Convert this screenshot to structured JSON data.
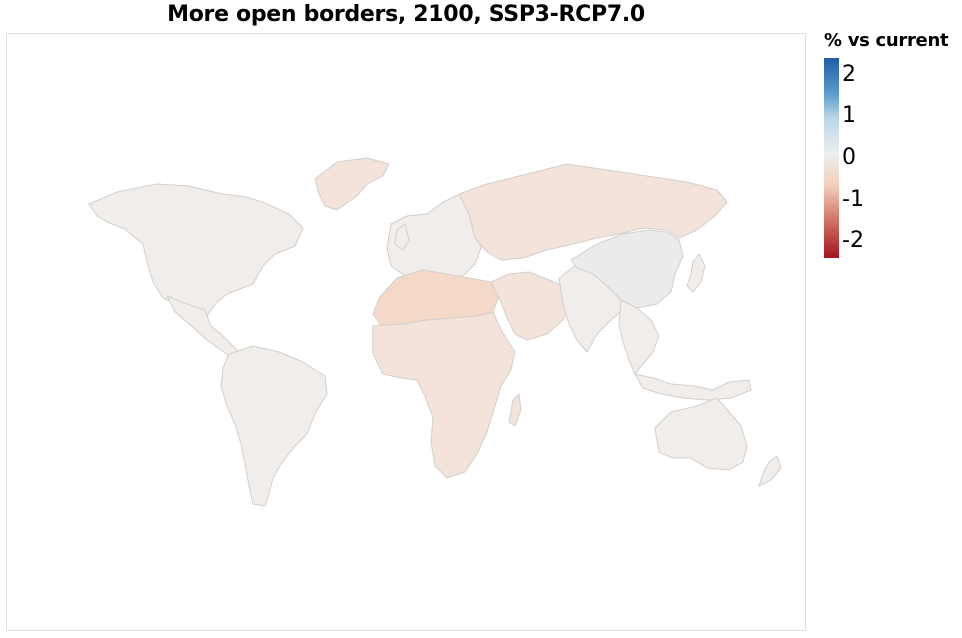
{
  "title": "More open borders, 2100, SSP3-RCP7.0",
  "legend": {
    "title": "% vs current",
    "ticks": [
      {
        "label": "2",
        "value": 2
      },
      {
        "label": "1",
        "value": 1
      },
      {
        "label": "0",
        "value": 0
      },
      {
        "label": "-1",
        "value": -1
      },
      {
        "label": "-2",
        "value": -2
      }
    ]
  },
  "colors": {
    "neutral_land": "#f0edeb",
    "slight_negative": "#f3e3da",
    "negative": "#f5d9c8",
    "china": "#ebebeb",
    "border": "#d2cfcc",
    "scale_max": "#1e5fa6",
    "scale_min": "#a3141f"
  },
  "regions": [
    {
      "name": "north-america",
      "value": -0.1
    },
    {
      "name": "central-america",
      "value": -0.1
    },
    {
      "name": "south-america",
      "value": -0.1
    },
    {
      "name": "greenland",
      "value": -0.2
    },
    {
      "name": "europe",
      "value": -0.1
    },
    {
      "name": "russia",
      "value": -0.3
    },
    {
      "name": "north-africa",
      "value": -0.5
    },
    {
      "name": "sub-saharan-africa",
      "value": -0.2
    },
    {
      "name": "middle-east",
      "value": -0.2
    },
    {
      "name": "south-asia",
      "value": -0.1
    },
    {
      "name": "china",
      "value": 0.0
    },
    {
      "name": "southeast-asia",
      "value": -0.1
    },
    {
      "name": "australia",
      "value": -0.1
    }
  ]
}
